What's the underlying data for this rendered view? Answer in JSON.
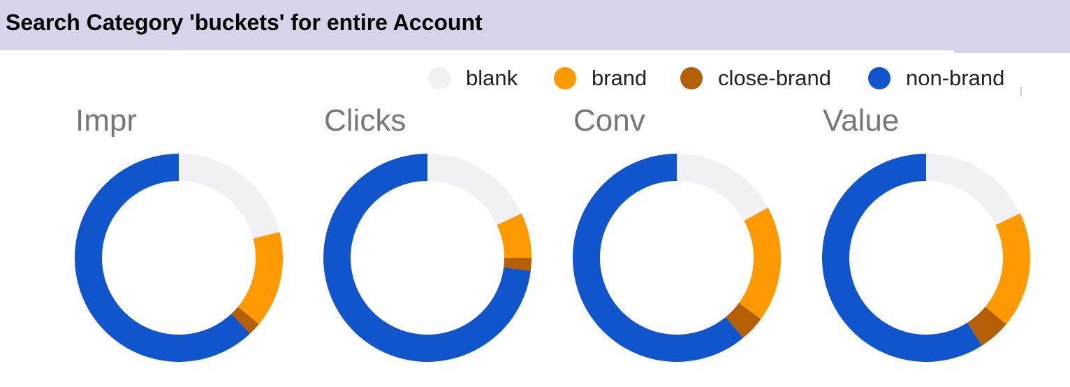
{
  "header": {
    "title": "Search Category 'buckets' for entire Account"
  },
  "legend": [
    {
      "label": "blank",
      "color": "#f1f1f4"
    },
    {
      "label": "brand",
      "color": "#ff9900"
    },
    {
      "label": "close-brand",
      "color": "#b45f06"
    },
    {
      "label": "non-brand",
      "color": "#1155cc"
    }
  ],
  "chart_data": [
    {
      "type": "pie",
      "title": "Impr",
      "categories": [
        "blank",
        "brand",
        "close-brand",
        "non-brand"
      ],
      "values": [
        21,
        15,
        2,
        62
      ]
    },
    {
      "type": "pie",
      "title": "Clicks",
      "categories": [
        "blank",
        "brand",
        "close-brand",
        "non-brand"
      ],
      "values": [
        18,
        7,
        2,
        73
      ]
    },
    {
      "type": "pie",
      "title": "Conv",
      "categories": [
        "blank",
        "brand",
        "close-brand",
        "non-brand"
      ],
      "values": [
        17,
        18,
        4,
        61
      ]
    },
    {
      "type": "pie",
      "title": "Value",
      "categories": [
        "blank",
        "brand",
        "close-brand",
        "non-brand"
      ],
      "values": [
        18,
        18,
        5,
        59
      ]
    }
  ]
}
